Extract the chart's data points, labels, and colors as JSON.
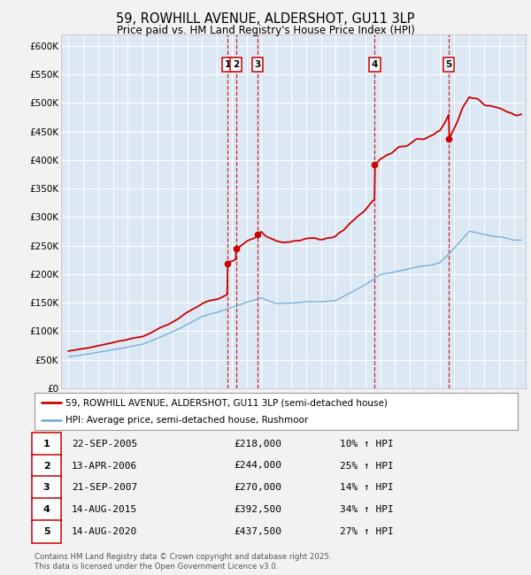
{
  "title": "59, ROWHILL AVENUE, ALDERSHOT, GU11 3LP",
  "subtitle": "Price paid vs. HM Land Registry's House Price Index (HPI)",
  "plot_bg_color": "#dce9f5",
  "fig_bg_color": "#f2f2f2",
  "ylim": [
    0,
    620000
  ],
  "yticks": [
    0,
    50000,
    100000,
    150000,
    200000,
    250000,
    300000,
    350000,
    400000,
    450000,
    500000,
    550000,
    600000
  ],
  "ytick_labels": [
    "£0",
    "£50K",
    "£100K",
    "£150K",
    "£200K",
    "£250K",
    "£300K",
    "£350K",
    "£400K",
    "£450K",
    "£500K",
    "£550K",
    "£600K"
  ],
  "xlim_start": 1994.5,
  "xlim_end": 2025.8,
  "red_line_color": "#cc0000",
  "blue_line_color": "#7aaed6",
  "vline_color": "#cc0000",
  "box_edge_color": "#cc0000",
  "transactions": [
    {
      "num": 1,
      "year": 2005.72,
      "price": 218000,
      "label": "1",
      "date": "22-SEP-2005",
      "pct": "10%"
    },
    {
      "num": 2,
      "year": 2006.28,
      "price": 244000,
      "label": "2",
      "date": "13-APR-2006",
      "pct": "25%"
    },
    {
      "num": 3,
      "year": 2007.72,
      "price": 270000,
      "label": "3",
      "date": "21-SEP-2007",
      "pct": "14%"
    },
    {
      "num": 4,
      "year": 2015.62,
      "price": 392500,
      "label": "4",
      "date": "14-AUG-2015",
      "pct": "34%"
    },
    {
      "num": 5,
      "year": 2020.62,
      "price": 437500,
      "label": "5",
      "date": "14-AUG-2020",
      "pct": "27%"
    }
  ],
  "footer_text": "Contains HM Land Registry data © Crown copyright and database right 2025.\nThis data is licensed under the Open Government Licence v3.0.",
  "legend_red_label": "59, ROWHILL AVENUE, ALDERSHOT, GU11 3LP (semi-detached house)",
  "legend_blue_label": "HPI: Average price, semi-detached house, Rushmoor",
  "table_rows": [
    [
      "1",
      "22-SEP-2005",
      "£218,000",
      "10% ↑ HPI"
    ],
    [
      "2",
      "13-APR-2006",
      "£244,000",
      "25% ↑ HPI"
    ],
    [
      "3",
      "21-SEP-2007",
      "£270,000",
      "14% ↑ HPI"
    ],
    [
      "4",
      "14-AUG-2015",
      "£392,500",
      "34% ↑ HPI"
    ],
    [
      "5",
      "14-AUG-2020",
      "£437,500",
      "27% ↑ HPI"
    ]
  ],
  "hpi_base": 55000,
  "hpi_segments": [
    {
      "start": 1995,
      "end": 2000,
      "rate": 0.07
    },
    {
      "start": 2000,
      "end": 2004,
      "rate": 0.13
    },
    {
      "start": 2004,
      "end": 2008,
      "rate": 0.06
    },
    {
      "start": 2008,
      "end": 2009,
      "rate": -0.07
    },
    {
      "start": 2009,
      "end": 2013,
      "rate": 0.01
    },
    {
      "start": 2013,
      "end": 2016,
      "rate": 0.09
    },
    {
      "start": 2016,
      "end": 2020,
      "rate": 0.025
    },
    {
      "start": 2020,
      "end": 2022,
      "rate": 0.12
    },
    {
      "start": 2022,
      "end": 2025,
      "rate": -0.02
    }
  ]
}
